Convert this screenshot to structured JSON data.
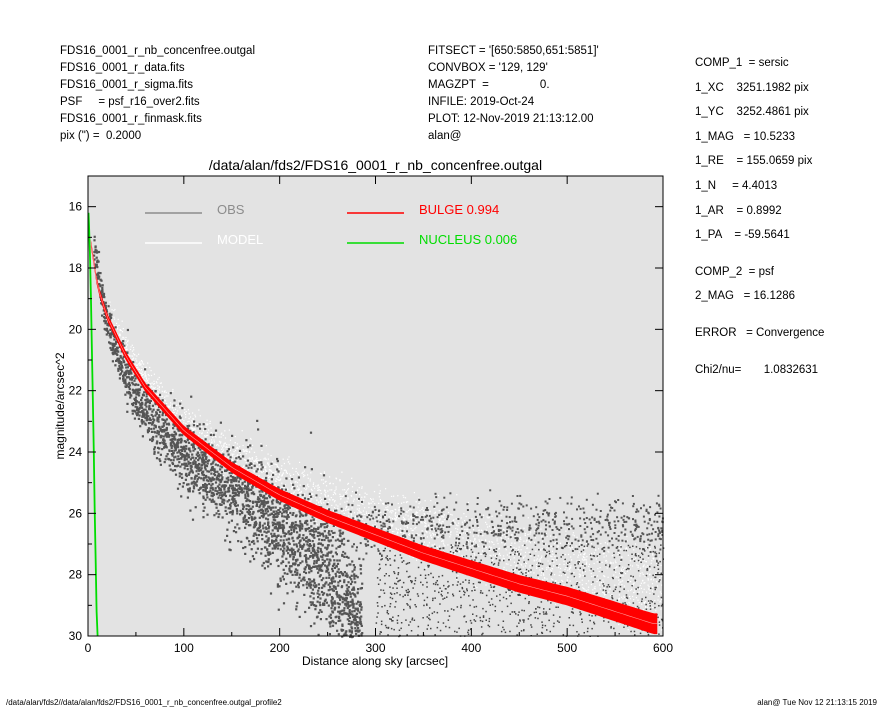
{
  "header_left": [
    "FDS16_0001_r_nb_concenfree.outgal",
    "FDS16_0001_r_data.fits",
    "FDS16_0001_r_sigma.fits",
    "PSF     = psf_r16_over2.fits",
    "FDS16_0001_r_finmask.fits",
    "pix (\") =  0.2000"
  ],
  "header_mid": [
    "FITSECT = '[650:5850,651:5851]'",
    "CONVBOX = '129, 129'",
    "MAGZPT  =                0.",
    "INFILE: 2019-Oct-24",
    "PLOT: 12-Nov-2019 21:13:12.00",
    "alan@"
  ],
  "right_panel": {
    "comp1": [
      "COMP_1  = sersic",
      "1_XC    3251.1982 pix",
      "1_YC    3252.4861 pix",
      "1_MAG   = 10.5233",
      "1_RE    = 155.0659 pix",
      "1_N     = 4.4013",
      "1_AR    = 0.8992",
      "1_PA    = -59.5641"
    ],
    "comp2": [
      "COMP_2  = psf",
      "2_MAG   = 16.1286"
    ],
    "error": "ERROR   = Convergence",
    "chi2": "Chi2/nu=       1.0832631"
  },
  "footer_left": "/data/alan/fds2//data/alan/fds2/FDS16_0001_r_nb_concenfree.outgal_profile2",
  "footer_right": "alan@  Tue Nov 12 21:13:15 2019",
  "chart_data": {
    "type": "scatter",
    "title": "/data/alan/fds2/FDS16_0001_r_nb_concenfree.outgal",
    "xlabel": "Distance along sky [arcsec]",
    "ylabel": "magnitude/arcsec^2",
    "xlim": [
      0,
      600
    ],
    "ylim": [
      30,
      15
    ],
    "xticks": [
      0,
      100,
      200,
      300,
      400,
      500,
      600
    ],
    "yticks": [
      16,
      18,
      20,
      22,
      24,
      26,
      28,
      30
    ],
    "background": "#e3e3e3",
    "legend": [
      {
        "label": "OBS",
        "color": "#8c8c8c"
      },
      {
        "label": "MODEL",
        "color": "#ffffff"
      },
      {
        "label": "BULGE  0.994",
        "color": "#ff0000"
      },
      {
        "label": "NUCLEUS  0.006",
        "color": "#00dd00"
      }
    ],
    "series": [
      {
        "name": "OBS",
        "color": "#555555",
        "description_points": [
          [
            5,
            17.4
          ],
          [
            20,
            19.9
          ],
          [
            50,
            22.3
          ],
          [
            100,
            24.0
          ],
          [
            150,
            25.2
          ],
          [
            200,
            26.4
          ],
          [
            250,
            28.0
          ],
          [
            280,
            29.6
          ]
        ]
      },
      {
        "name": "MODEL",
        "color": "#ffffff",
        "x": [
          3,
          10,
          20,
          40,
          60,
          100,
          150,
          200,
          250,
          300,
          350,
          400,
          450,
          500,
          550,
          590
        ],
        "y": [
          17.2,
          18.6,
          19.6,
          20.9,
          21.9,
          23.3,
          24.5,
          25.4,
          26.1,
          26.7,
          27.3,
          27.8,
          28.3,
          28.7,
          29.2,
          29.6
        ]
      },
      {
        "name": "BULGE  0.994",
        "color": "#ff0000",
        "x": [
          3,
          10,
          20,
          40,
          60,
          100,
          150,
          200,
          250,
          300,
          350,
          400,
          450,
          500,
          550,
          590
        ],
        "y": [
          17.2,
          18.6,
          19.6,
          20.9,
          21.9,
          23.3,
          24.5,
          25.4,
          26.1,
          26.7,
          27.3,
          27.8,
          28.3,
          28.7,
          29.2,
          29.6
        ]
      },
      {
        "name": "NUCLEUS  0.006",
        "color": "#00dd00",
        "x": [
          0.5,
          1,
          2,
          3,
          4,
          5,
          6,
          7,
          8,
          9,
          10
        ],
        "y": [
          16.2,
          16.6,
          17.5,
          18.9,
          20.5,
          22.2,
          24.0,
          25.9,
          27.6,
          29.2,
          30.0
        ]
      }
    ]
  }
}
